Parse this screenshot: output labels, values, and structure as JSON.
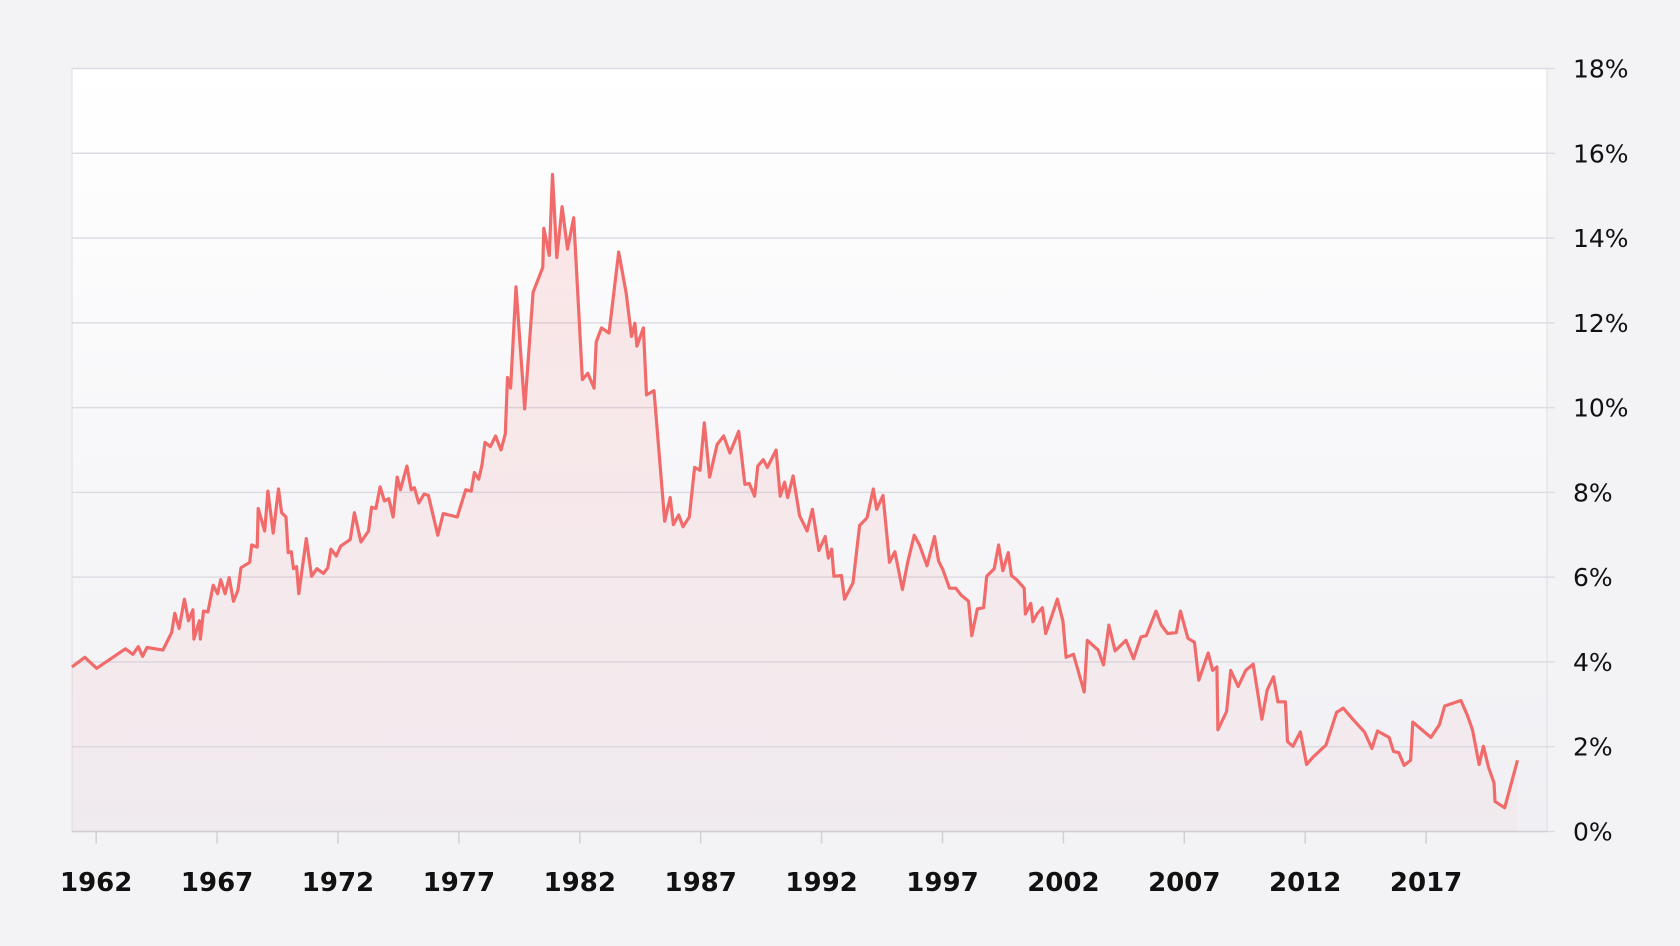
{
  "chart_data": {
    "type": "area",
    "x": [
      1961.0,
      1961.53,
      1962.02,
      1963.21,
      1963.52,
      1963.74,
      1963.92,
      1964.1,
      1964.76,
      1965.12,
      1965.25,
      1965.43,
      1965.65,
      1965.82,
      1966.0,
      1966.04,
      1966.27,
      1966.31,
      1966.44,
      1966.62,
      1966.84,
      1967.02,
      1967.15,
      1967.33,
      1967.5,
      1967.68,
      1967.86,
      1967.99,
      1968.35,
      1968.43,
      1968.66,
      1968.7,
      1968.97,
      1969.1,
      1969.32,
      1969.54,
      1969.67,
      1969.85,
      1969.94,
      1970.07,
      1970.16,
      1970.29,
      1970.38,
      1970.69,
      1970.91,
      1971.13,
      1971.4,
      1971.58,
      1971.71,
      1971.93,
      1972.11,
      1972.51,
      1972.68,
      1972.95,
      1973.26,
      1973.39,
      1973.57,
      1973.74,
      1973.92,
      1974.1,
      1974.28,
      1974.45,
      1974.58,
      1974.85,
      1975.03,
      1975.16,
      1975.34,
      1975.56,
      1975.74,
      1976.13,
      1976.35,
      1976.93,
      1977.28,
      1977.51,
      1977.64,
      1977.82,
      1977.95,
      1978.08,
      1978.3,
      1978.52,
      1978.74,
      1978.92,
      1979.01,
      1979.14,
      1979.36,
      1979.72,
      1980.07,
      1980.47,
      1980.51,
      1980.74,
      1980.87,
      1981.05,
      1981.27,
      1981.49,
      1981.75,
      1982.11,
      1982.33,
      1982.59,
      1982.68,
      1982.9,
      1983.21,
      1983.61,
      1983.92,
      1984.14,
      1984.28,
      1984.36,
      1984.63,
      1984.76,
      1985.07,
      1985.51,
      1985.74,
      1985.87,
      1986.09,
      1986.27,
      1986.53,
      1986.75,
      1986.97,
      1987.15,
      1987.37,
      1987.68,
      1987.95,
      1988.21,
      1988.57,
      1988.83,
      1989.01,
      1989.23,
      1989.36,
      1989.59,
      1989.76,
      1990.12,
      1990.29,
      1990.47,
      1990.6,
      1990.82,
      1991.09,
      1991.4,
      1991.62,
      1991.89,
      1992.15,
      1992.28,
      1992.42,
      1992.51,
      1992.82,
      1992.95,
      1993.3,
      1993.57,
      1993.88,
      1994.14,
      1994.28,
      1994.54,
      1994.81,
      1995.03,
      1995.34,
      1995.56,
      1995.83,
      1996.05,
      1996.36,
      1996.67,
      1996.84,
      1997.02,
      1997.29,
      1997.55,
      1997.77,
      1998.08,
      1998.21,
      1998.44,
      1998.7,
      1998.83,
      1999.14,
      1999.32,
      1999.5,
      1999.72,
      1999.85,
      2000.07,
      2000.38,
      2000.43,
      2000.65,
      2000.74,
      2000.91,
      2001.13,
      2001.27,
      2001.53,
      2001.75,
      2001.98,
      2002.11,
      2002.42,
      2002.86,
      2002.99,
      2003.44,
      2003.66,
      2003.88,
      2004.14,
      2004.59,
      2004.9,
      2005.21,
      2005.43,
      2005.83,
      2006.05,
      2006.31,
      2006.67,
      2006.84,
      2007.15,
      2007.42,
      2007.6,
      2007.99,
      2008.17,
      2008.35,
      2008.39,
      2008.75,
      2008.92,
      2009.23,
      2009.54,
      2009.85,
      2010.21,
      2010.43,
      2010.69,
      2010.87,
      2011.18,
      2011.27,
      2011.49,
      2011.8,
      2012.06,
      2012.33,
      2012.86,
      2013.3,
      2013.57,
      2013.97,
      2014.45,
      2014.76,
      2014.99,
      2015.47,
      2015.65,
      2015.87,
      2016.09,
      2016.36,
      2016.45,
      2017.2,
      2017.55,
      2017.77,
      2018.44,
      2018.7,
      2018.92,
      2019.19,
      2019.37,
      2019.59,
      2019.81,
      2019.85,
      2020.25,
      2020.78
    ],
    "values": [
      3.88,
      4.11,
      3.85,
      4.31,
      4.18,
      4.36,
      4.13,
      4.34,
      4.28,
      4.69,
      5.15,
      4.79,
      5.48,
      4.97,
      5.23,
      4.54,
      4.97,
      4.54,
      5.2,
      5.18,
      5.81,
      5.61,
      5.94,
      5.61,
      5.99,
      5.43,
      5.69,
      6.22,
      6.35,
      6.76,
      6.71,
      7.62,
      7.09,
      8.03,
      7.04,
      8.08,
      7.52,
      7.42,
      6.58,
      6.6,
      6.2,
      6.25,
      5.61,
      6.91,
      6.02,
      6.2,
      6.09,
      6.22,
      6.66,
      6.5,
      6.73,
      6.89,
      7.52,
      6.83,
      7.09,
      7.65,
      7.62,
      8.13,
      7.8,
      7.85,
      7.42,
      8.36,
      8.06,
      8.62,
      8.06,
      8.11,
      7.75,
      7.96,
      7.93,
      6.99,
      7.5,
      7.42,
      8.06,
      8.03,
      8.47,
      8.31,
      8.64,
      9.18,
      9.08,
      9.33,
      9.0,
      9.38,
      10.71,
      10.46,
      12.85,
      9.97,
      12.72,
      13.31,
      14.23,
      13.59,
      15.5,
      13.54,
      14.74,
      13.74,
      14.48,
      10.66,
      10.81,
      10.46,
      11.55,
      11.88,
      11.76,
      13.67,
      12.7,
      11.68,
      11.99,
      11.45,
      11.88,
      10.3,
      10.4,
      7.32,
      7.88,
      7.24,
      7.47,
      7.19,
      7.42,
      8.59,
      8.52,
      9.64,
      8.36,
      9.13,
      9.33,
      8.93,
      9.44,
      8.19,
      8.21,
      7.91,
      8.62,
      8.77,
      8.59,
      9.0,
      7.91,
      8.24,
      7.88,
      8.39,
      7.45,
      7.09,
      7.6,
      6.63,
      6.96,
      6.45,
      6.66,
      6.02,
      6.04,
      5.48,
      5.87,
      7.22,
      7.4,
      8.08,
      7.6,
      7.93,
      6.35,
      6.6,
      5.71,
      6.35,
      6.99,
      6.76,
      6.27,
      6.96,
      6.38,
      6.17,
      5.74,
      5.74,
      5.58,
      5.43,
      4.62,
      5.25,
      5.28,
      6.02,
      6.2,
      6.76,
      6.15,
      6.58,
      6.04,
      5.94,
      5.74,
      5.13,
      5.38,
      4.95,
      5.13,
      5.28,
      4.67,
      5.1,
      5.48,
      4.97,
      4.11,
      4.18,
      3.29,
      4.51,
      4.28,
      3.93,
      4.87,
      4.26,
      4.51,
      4.08,
      4.59,
      4.62,
      5.2,
      4.87,
      4.67,
      4.69,
      5.2,
      4.56,
      4.46,
      3.57,
      4.21,
      3.8,
      3.88,
      2.4,
      2.83,
      3.8,
      3.42,
      3.8,
      3.95,
      2.65,
      3.34,
      3.65,
      3.06,
      3.06,
      2.12,
      2.01,
      2.35,
      1.58,
      1.76,
      2.04,
      2.81,
      2.91,
      2.65,
      2.35,
      1.96,
      2.37,
      2.22,
      1.89,
      1.86,
      1.56,
      1.68,
      2.58,
      2.22,
      2.52,
      2.96,
      3.09,
      2.75,
      2.4,
      1.58,
      2.01,
      1.5,
      1.15,
      0.71,
      0.56,
      1.68
    ],
    "color": "#f26b6b",
    "xlim": [
      1961,
      2022
    ],
    "xticks": [
      1962,
      1967,
      1972,
      1977,
      1982,
      1987,
      1992,
      1997,
      2002,
      2007,
      2012,
      2017
    ],
    "ylim": [
      0,
      18
    ],
    "yticks": [
      {
        "value": 0,
        "label": "0%"
      },
      {
        "value": 2,
        "label": "2%"
      },
      {
        "value": 4,
        "label": "4%"
      },
      {
        "value": 6,
        "label": "6%"
      },
      {
        "value": 8,
        "label": "8%"
      },
      {
        "value": 10,
        "label": "10%"
      },
      {
        "value": 12,
        "label": "12%"
      },
      {
        "value": 14,
        "label": "14%"
      },
      {
        "value": 16,
        "label": "16%"
      },
      {
        "value": 18,
        "label": "18%"
      }
    ],
    "grid": true
  }
}
